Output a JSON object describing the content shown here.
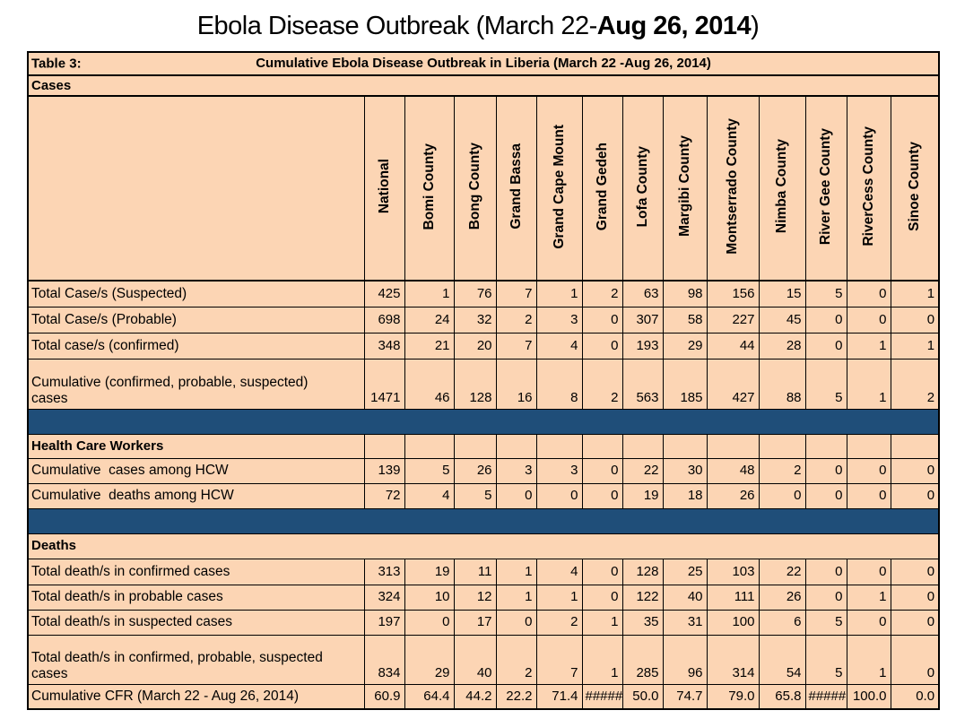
{
  "page_title": {
    "prefix": "Ebola Disease Outbreak (March 22-",
    "bold": "Aug 26, 2014",
    "suffix": ")"
  },
  "table": {
    "label": "Table 3:",
    "caption": "Cumulative Ebola Disease Outbreak in Liberia (March 22 -Aug 26, 2014)",
    "columns": [
      "National",
      "Bomi County",
      "Bong County",
      "Grand Bassa",
      "Grand Cape Mount",
      "Grand Gedeh",
      "Lofa County",
      "Margibi County",
      "Montserrado County",
      "Nimba County",
      "River Gee County",
      "RiverCess County",
      "Sinoe County"
    ],
    "rows": [
      {
        "kind": "header"
      },
      {
        "kind": "band",
        "slug": "cases",
        "label": "Cases",
        "cells": false
      },
      {
        "kind": "colheads"
      },
      {
        "kind": "data",
        "slug": "total-cases-suspected",
        "label": "Total Case/s (Suspected)",
        "values": [
          "425",
          "1",
          "76",
          "7",
          "1",
          "2",
          "63",
          "98",
          "156",
          "15",
          "5",
          "0",
          "1"
        ]
      },
      {
        "kind": "data",
        "slug": "total-cases-probable",
        "label": "Total Case/s (Probable)",
        "values": [
          "698",
          "24",
          "32",
          "2",
          "3",
          "0",
          "307",
          "58",
          "227",
          "45",
          "0",
          "0",
          "0"
        ]
      },
      {
        "kind": "data",
        "slug": "total-cases-confirmed",
        "label": "Total case/s (confirmed)",
        "values": [
          "348",
          "21",
          "20",
          "7",
          "4",
          "0",
          "193",
          "29",
          "44",
          "28",
          "0",
          "1",
          "1"
        ]
      },
      {
        "kind": "data",
        "slug": "cumulative-cases",
        "tall": true,
        "label": "Cumulative (confirmed, probable, suspected)\ncases",
        "values": [
          "1471",
          "46",
          "128",
          "16",
          "8",
          "2",
          "563",
          "185",
          "427",
          "88",
          "5",
          "1",
          "2"
        ]
      },
      {
        "kind": "sep"
      },
      {
        "kind": "band",
        "slug": "health-care-workers",
        "label": "Health Care Workers",
        "cells": true
      },
      {
        "kind": "data",
        "slug": "hcw-cases",
        "label": "Cumulative  cases among HCW",
        "values": [
          "139",
          "5",
          "26",
          "3",
          "3",
          "0",
          "22",
          "30",
          "48",
          "2",
          "0",
          "0",
          "0"
        ]
      },
      {
        "kind": "data",
        "slug": "hcw-deaths",
        "label": "Cumulative  deaths among HCW",
        "values": [
          "72",
          "4",
          "5",
          "0",
          "0",
          "0",
          "19",
          "18",
          "26",
          "0",
          "0",
          "0",
          "0"
        ]
      },
      {
        "kind": "sep"
      },
      {
        "kind": "band",
        "slug": "deaths",
        "label": "Deaths",
        "cells": false
      },
      {
        "kind": "data",
        "slug": "deaths-confirmed",
        "label": "Total death/s in confirmed cases",
        "values": [
          "313",
          "19",
          "11",
          "1",
          "4",
          "0",
          "128",
          "25",
          "103",
          "22",
          "0",
          "0",
          "0"
        ]
      },
      {
        "kind": "data",
        "slug": "deaths-probable",
        "label": "Total death/s in probable cases",
        "values": [
          "324",
          "10",
          "12",
          "1",
          "1",
          "0",
          "122",
          "40",
          "111",
          "26",
          "0",
          "1",
          "0"
        ]
      },
      {
        "kind": "data",
        "slug": "deaths-suspected",
        "label": "Total death/s in suspected cases",
        "values": [
          "197",
          "0",
          "17",
          "0",
          "2",
          "1",
          "35",
          "31",
          "100",
          "6",
          "5",
          "0",
          "0"
        ]
      },
      {
        "kind": "data",
        "slug": "deaths-cumulative",
        "tall": true,
        "label": "Total death/s in confirmed, probable, suspected\ncases",
        "values": [
          "834",
          "29",
          "40",
          "2",
          "7",
          "1",
          "285",
          "96",
          "314",
          "54",
          "5",
          "1",
          "0"
        ]
      },
      {
        "kind": "data",
        "slug": "cumulative-cfr",
        "label": "Cumulative CFR (March 22 - Aug 26, 2014)",
        "values": [
          "60.9",
          "64.4",
          "44.2",
          "22.2",
          "71.4",
          "#####",
          "50.0",
          "74.7",
          "79.0",
          "65.8",
          "#####",
          "100.0",
          "0.0"
        ]
      }
    ]
  },
  "colors": {
    "cell_fill": "#FCD5B4",
    "separator_fill": "#1F4E79",
    "border": "#000000",
    "page_background": "#FFFFFF"
  }
}
